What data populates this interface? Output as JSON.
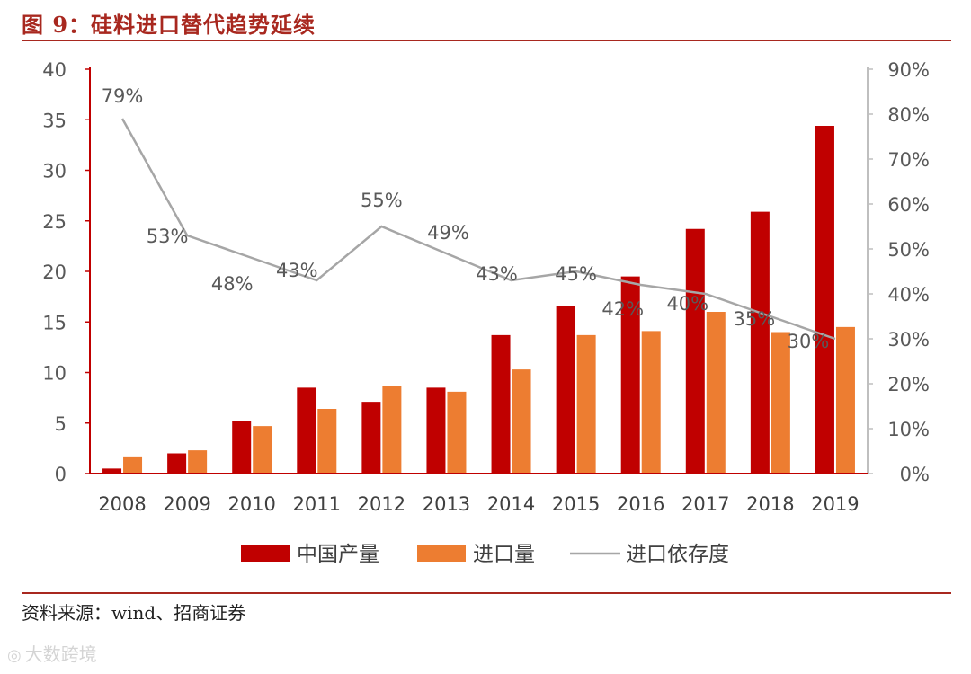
{
  "header": {
    "title": "图 9：硅料进口替代趋势延续"
  },
  "footer": {
    "source": "资料来源：wind、招商证券",
    "watermark": "大数跨境",
    "watermark_icon": "logo-icon"
  },
  "colors": {
    "production": "#c00000",
    "import": "#ed7d31",
    "dependency": "#a6a6a6",
    "accent": "#a8281f"
  },
  "chart_data": {
    "type": "bar",
    "title": "硅料进口替代趋势延续",
    "categories": [
      "2008",
      "2009",
      "2010",
      "2011",
      "2012",
      "2013",
      "2014",
      "2015",
      "2016",
      "2017",
      "2018",
      "2019"
    ],
    "series": [
      {
        "name": "中国产量",
        "type": "bar",
        "axis": "left",
        "values": [
          0.5,
          2.0,
          5.2,
          8.5,
          7.1,
          8.5,
          13.7,
          16.6,
          19.5,
          24.2,
          25.9,
          34.4
        ]
      },
      {
        "name": "进口量",
        "type": "bar",
        "axis": "left",
        "values": [
          1.7,
          2.3,
          4.7,
          6.4,
          8.7,
          8.1,
          10.3,
          13.7,
          14.1,
          16.0,
          14.0,
          14.5
        ]
      },
      {
        "name": "进口依存度",
        "type": "line",
        "axis": "right",
        "values": [
          79,
          53,
          48,
          43,
          55,
          49,
          43,
          45,
          42,
          40,
          35,
          30
        ]
      }
    ],
    "left_axis": {
      "min": 0,
      "max": 40,
      "step": 5,
      "ticks": [
        "0",
        "5",
        "10",
        "15",
        "20",
        "25",
        "30",
        "35",
        "40"
      ]
    },
    "right_axis": {
      "min": 0,
      "max": 90,
      "step": 10,
      "ticks": [
        "0%",
        "10%",
        "20%",
        "30%",
        "40%",
        "50%",
        "60%",
        "70%",
        "80%",
        "90%"
      ]
    },
    "line_labels": [
      "79%",
      "53%",
      "48%",
      "43%",
      "55%",
      "49%",
      "43%",
      "45%",
      "42%",
      "40%",
      "35%",
      "30%"
    ],
    "legend": [
      "中国产量",
      "进口量",
      "进口依存度"
    ],
    "legend_position": "bottom"
  }
}
